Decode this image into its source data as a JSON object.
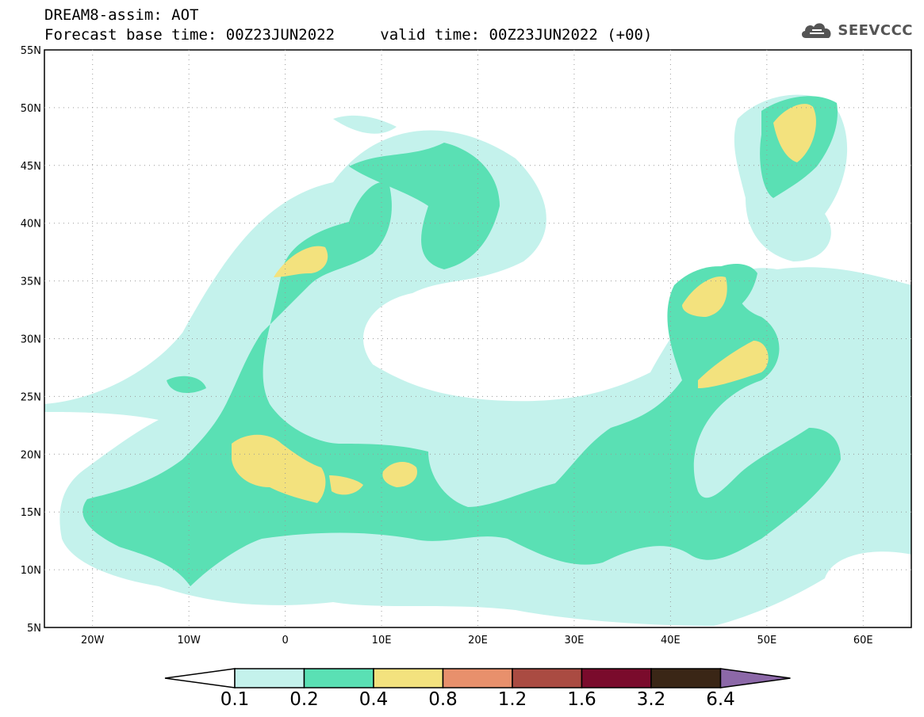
{
  "header": {
    "line1": "DREAM8-assim: AOT",
    "line2_base": "Forecast base time: 00Z23JUN2022",
    "line2_valid": "valid time: 00Z23JUN2022 (+00)"
  },
  "logo": {
    "text": "SEEVCCC",
    "icon": "cloud-icon"
  },
  "map": {
    "lat_labels": [
      "55N",
      "50N",
      "45N",
      "40N",
      "35N",
      "30N",
      "25N",
      "20N",
      "15N",
      "10N",
      "5N"
    ],
    "lon_labels": [
      "20W",
      "10W",
      "0",
      "10E",
      "20E",
      "30E",
      "40E",
      "50E",
      "60E"
    ],
    "colors": {
      "c01": "#c4f2ec",
      "c02": "#5ae0b4",
      "c04": "#f3e27e",
      "c08": "#e8906c",
      "c12": "#aa4b42",
      "c16": "#7a0b2c",
      "c32": "#3a2616",
      "c64": "#8c68a8"
    }
  },
  "colorbar": {
    "labels": [
      "0.1",
      "0.2",
      "0.4",
      "0.8",
      "1.2",
      "1.6",
      "3.2",
      "6.4"
    ]
  }
}
